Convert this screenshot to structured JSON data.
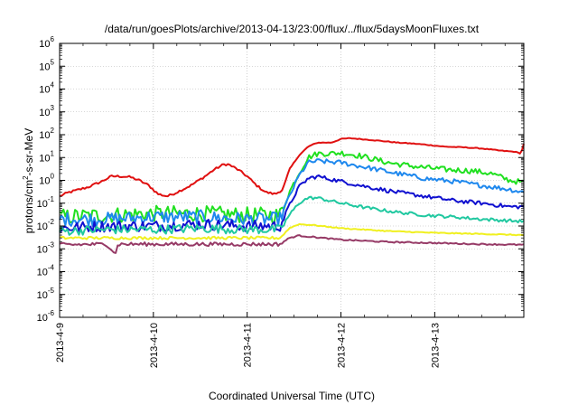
{
  "chart_data": {
    "type": "line",
    "title": "/data/run/goesPlots/archive/2013-04-13/23:00/flux/../flux/5daysMoonFluxes.txt",
    "xlabel": "Coordinated Universal Time (UTC)",
    "ylabel": {
      "prefix": "protons/cm",
      "sup": "2",
      "suffix": "-s-sr-MeV"
    },
    "x_range_days": [
      0,
      4.95
    ],
    "xticks": [
      {
        "day": 0,
        "label": "2013-4-9"
      },
      {
        "day": 1,
        "label": "2013-4-10"
      },
      {
        "day": 2,
        "label": "2013-4-11"
      },
      {
        "day": 3,
        "label": "2013-4-12"
      },
      {
        "day": 4,
        "label": "2013-4-13"
      }
    ],
    "y_scale": "log",
    "ylim_exp": [
      -6,
      6
    ],
    "yticks": [
      {
        "base": "10",
        "exp": "-6"
      },
      {
        "base": "10",
        "exp": "-5"
      },
      {
        "base": "10",
        "exp": "-4"
      },
      {
        "base": "10",
        "exp": "-3"
      },
      {
        "base": "10",
        "exp": "-2"
      },
      {
        "base": "10",
        "exp": "-1"
      },
      {
        "base": "10",
        "exp": "0"
      },
      {
        "base": "10",
        "exp": "1"
      },
      {
        "base": "10",
        "exp": "2"
      },
      {
        "base": "10",
        "exp": "3"
      },
      {
        "base": "10",
        "exp": "4"
      },
      {
        "base": "10",
        "exp": "5"
      },
      {
        "base": "10",
        "exp": "6"
      }
    ],
    "grid": true,
    "series": [
      {
        "color": "#e01010",
        "noise": 0.05,
        "points": [
          [
            0,
            0.2
          ],
          [
            0.1,
            0.3
          ],
          [
            0.3,
            0.5
          ],
          [
            0.45,
            0.9
          ],
          [
            0.55,
            1.5
          ],
          [
            0.65,
            1.5
          ],
          [
            0.75,
            1.4
          ],
          [
            0.85,
            1.0
          ],
          [
            0.95,
            0.6
          ],
          [
            1.05,
            0.25
          ],
          [
            1.15,
            0.2
          ],
          [
            1.25,
            0.3
          ],
          [
            1.4,
            0.6
          ],
          [
            1.55,
            1.5
          ],
          [
            1.65,
            3
          ],
          [
            1.75,
            5
          ],
          [
            1.8,
            5
          ],
          [
            1.9,
            3
          ],
          [
            2.0,
            1.5
          ],
          [
            2.1,
            0.6
          ],
          [
            2.2,
            0.3
          ],
          [
            2.3,
            0.25
          ],
          [
            2.38,
            0.4
          ],
          [
            2.45,
            3
          ],
          [
            2.55,
            12
          ],
          [
            2.65,
            30
          ],
          [
            2.75,
            45
          ],
          [
            2.9,
            45
          ],
          [
            3.0,
            65
          ],
          [
            3.1,
            70
          ],
          [
            3.3,
            60
          ],
          [
            3.5,
            50
          ],
          [
            3.6,
            45
          ],
          [
            3.8,
            40
          ],
          [
            3.95,
            35
          ],
          [
            4.1,
            30
          ],
          [
            4.3,
            28
          ],
          [
            4.5,
            25
          ],
          [
            4.7,
            20
          ],
          [
            4.85,
            18
          ],
          [
            4.92,
            15
          ],
          [
            4.95,
            40
          ]
        ]
      },
      {
        "color": "#20e020",
        "noise": 0.35,
        "points": [
          [
            0,
            0.025
          ],
          [
            0.5,
            0.03
          ],
          [
            1.0,
            0.035
          ],
          [
            1.5,
            0.035
          ],
          [
            2.0,
            0.03
          ],
          [
            2.35,
            0.03
          ],
          [
            2.45,
            0.3
          ],
          [
            2.55,
            2
          ],
          [
            2.65,
            10
          ],
          [
            2.75,
            15
          ],
          [
            2.9,
            15
          ],
          [
            3.0,
            16
          ],
          [
            3.2,
            12
          ],
          [
            3.5,
            6
          ],
          [
            3.8,
            4
          ],
          [
            4.1,
            3
          ],
          [
            4.4,
            2.6
          ],
          [
            4.6,
            2
          ],
          [
            4.8,
            1.0
          ],
          [
            4.95,
            0.8
          ]
        ]
      },
      {
        "color": "#1e88ee",
        "noise": 0.3,
        "points": [
          [
            0,
            0.02
          ],
          [
            0.5,
            0.02
          ],
          [
            1.0,
            0.025
          ],
          [
            1.5,
            0.025
          ],
          [
            2.0,
            0.02
          ],
          [
            2.35,
            0.02
          ],
          [
            2.45,
            0.2
          ],
          [
            2.55,
            1.5
          ],
          [
            2.65,
            6
          ],
          [
            2.75,
            7
          ],
          [
            3.0,
            6
          ],
          [
            3.3,
            3.5
          ],
          [
            3.6,
            2
          ],
          [
            3.9,
            1.2
          ],
          [
            4.2,
            0.9
          ],
          [
            4.5,
            0.6
          ],
          [
            4.8,
            0.4
          ],
          [
            4.95,
            0.3
          ]
        ]
      },
      {
        "color": "#1010d0",
        "noise": 0.25,
        "points": [
          [
            0,
            0.008
          ],
          [
            0.5,
            0.01
          ],
          [
            1.0,
            0.01
          ],
          [
            1.5,
            0.012
          ],
          [
            2.0,
            0.01
          ],
          [
            2.35,
            0.01
          ],
          [
            2.45,
            0.08
          ],
          [
            2.55,
            0.5
          ],
          [
            2.65,
            1.2
          ],
          [
            2.75,
            1.5
          ],
          [
            3.0,
            0.9
          ],
          [
            3.3,
            0.5
          ],
          [
            3.6,
            0.3
          ],
          [
            3.9,
            0.2
          ],
          [
            4.2,
            0.13
          ],
          [
            4.5,
            0.1
          ],
          [
            4.8,
            0.07
          ],
          [
            4.95,
            0.07
          ]
        ]
      },
      {
        "color": "#20c8a0",
        "noise": 0.2,
        "points": [
          [
            0,
            0.006
          ],
          [
            0.5,
            0.007
          ],
          [
            1.0,
            0.007
          ],
          [
            1.5,
            0.008
          ],
          [
            2.0,
            0.007
          ],
          [
            2.35,
            0.007
          ],
          [
            2.45,
            0.03
          ],
          [
            2.55,
            0.1
          ],
          [
            2.65,
            0.17
          ],
          [
            2.75,
            0.17
          ],
          [
            3.0,
            0.1
          ],
          [
            3.3,
            0.06
          ],
          [
            3.6,
            0.04
          ],
          [
            3.9,
            0.03
          ],
          [
            4.2,
            0.025
          ],
          [
            4.5,
            0.02
          ],
          [
            4.8,
            0.017
          ],
          [
            4.95,
            0.016
          ]
        ]
      },
      {
        "color": "#f0f020",
        "noise": 0.06,
        "points": [
          [
            0,
            0.003
          ],
          [
            1.0,
            0.003
          ],
          [
            2.0,
            0.003
          ],
          [
            2.35,
            0.003
          ],
          [
            2.45,
            0.008
          ],
          [
            2.55,
            0.012
          ],
          [
            2.7,
            0.011
          ],
          [
            3.0,
            0.008
          ],
          [
            3.5,
            0.006
          ],
          [
            4.0,
            0.005
          ],
          [
            4.5,
            0.0045
          ],
          [
            4.95,
            0.004
          ]
        ]
      },
      {
        "color": "#963a66",
        "noise": 0.08,
        "points": [
          [
            0,
            0.0015
          ],
          [
            0.5,
            0.0016
          ],
          [
            0.6,
            0.0006
          ],
          [
            0.62,
            0.0016
          ],
          [
            1.0,
            0.0016
          ],
          [
            1.5,
            0.0016
          ],
          [
            2.0,
            0.0016
          ],
          [
            2.35,
            0.0016
          ],
          [
            2.45,
            0.003
          ],
          [
            2.55,
            0.0038
          ],
          [
            2.7,
            0.0033
          ],
          [
            3.0,
            0.0025
          ],
          [
            3.5,
            0.002
          ],
          [
            4.0,
            0.0018
          ],
          [
            4.5,
            0.0016
          ],
          [
            4.95,
            0.0015
          ]
        ]
      }
    ]
  }
}
